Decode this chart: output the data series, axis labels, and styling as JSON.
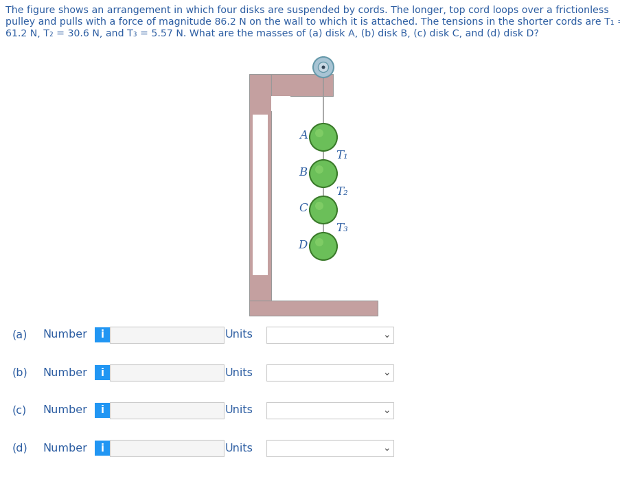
{
  "title_color": "#2E5FA3",
  "bg_color": "#ffffff",
  "wall_color": "#C4A0A0",
  "wall_outline": "#999999",
  "disk_fill": "#6BBF59",
  "disk_edge": "#3A7A2A",
  "cord_color": "#999999",
  "label_color": "#2E5FA3",
  "tension_color": "#2E5FA3",
  "rows": [
    "(a)",
    "(b)",
    "(c)",
    "(d)"
  ],
  "number_label": "Number",
  "units_label": "Units",
  "info_btn_color": "#2196F3",
  "input_bg": "#F5F5F5",
  "input_border": "#CCCCCC",
  "dropdown_bg": "#FFFFFF",
  "dropdown_border": "#CCCCCC",
  "chevron_color": "#555555",
  "title_lines": [
    "The figure shows an arrangement in which four disks are suspended by cords. The longer, top cord loops over a frictionless",
    "pulley and pulls with a force of magnitude 86.2 N on the wall to which it is attached. The tensions in the shorter cords are T₁ =",
    "61.2 N, T₂ = 30.6 N, and T₃ = 5.57 N. What are the masses of (a) disk A, (b) disk B, (c) disk C, and (d) disk D?"
  ],
  "disk_labels": [
    "A",
    "B",
    "C",
    "D"
  ],
  "tension_labels": [
    "T₁",
    "T₂",
    "T₃"
  ]
}
